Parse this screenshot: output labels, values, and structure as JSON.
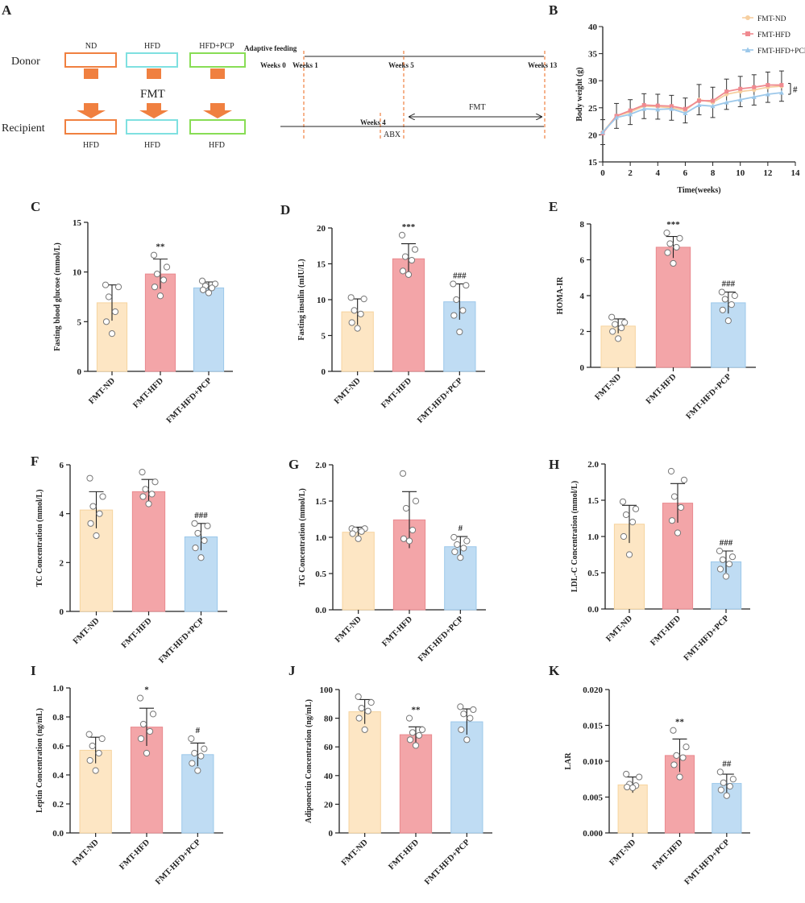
{
  "colors": {
    "nd": "#fde6c4",
    "hfd": "#f3a5a8",
    "pcp": "#bfdcf3",
    "nd_edge": "#f6d49f",
    "hfd_edge": "#e98a8f",
    "pcp_edge": "#9cc8ea",
    "orange": "#f08040",
    "cyan": "#7fe0e0",
    "green": "#88dd55",
    "dash": "#f08040"
  },
  "panels": {
    "A": "A",
    "B": "B",
    "C": "C",
    "D": "D",
    "E": "E",
    "F": "F",
    "G": "G",
    "H": "H",
    "I": "I",
    "J": "J",
    "K": "K"
  },
  "schematic": {
    "donor": "Donor",
    "recipient": "Recipient",
    "fmt": "FMT",
    "top_labels": [
      "ND",
      "HFD",
      "HFD+PCP"
    ],
    "bottom_labels": [
      "HFD",
      "HFD",
      "HFD"
    ],
    "adaptive": "Adaptive feeding",
    "week0": "Weeks 0",
    "week1": "Weeks 1",
    "week5": "Weeks 5",
    "week13": "Weeks 13",
    "week4": "Weeks 4",
    "abx": "ABX",
    "fmt_arrow": "FMT"
  },
  "chart_data": [
    {
      "id": "B",
      "type": "line",
      "xlabel": "Time(weeks)",
      "ylabel": "Body weight (g)",
      "xlim": [
        0,
        14
      ],
      "ylim": [
        15,
        40
      ],
      "xticks": [
        "0",
        "2",
        "4",
        "6",
        "8",
        "10",
        "12",
        "14"
      ],
      "yticks": [
        "15",
        "20",
        "25",
        "30",
        "35",
        "40"
      ],
      "x": [
        0,
        1,
        2,
        3,
        4,
        5,
        6,
        7,
        8,
        9,
        10,
        11,
        12,
        13
      ],
      "series": [
        {
          "name": "FMT-ND",
          "values": [
            20.5,
            23.5,
            24.2,
            25.3,
            25.2,
            25.0,
            24.5,
            26.5,
            26.0,
            27.5,
            28.0,
            28.3,
            28.8,
            29.0
          ]
        },
        {
          "name": "FMT-HFD",
          "values": [
            20.3,
            23.5,
            24.5,
            25.5,
            25.4,
            25.3,
            24.8,
            26.3,
            26.3,
            28.0,
            28.5,
            28.8,
            29.2,
            29.2
          ]
        },
        {
          "name": "FMT-HFD+PCP",
          "values": [
            20.5,
            23.2,
            23.8,
            24.8,
            24.7,
            24.8,
            24.0,
            25.5,
            25.3,
            26.0,
            26.5,
            27.0,
            27.5,
            27.8
          ]
        }
      ],
      "legend_position": "top-right",
      "annotation": "#"
    },
    {
      "id": "C",
      "type": "bar",
      "ylabel": "Fasting blood glucose (mmol/L)",
      "ylim": [
        0,
        15
      ],
      "yticks": [
        "0",
        "5",
        "10",
        "15"
      ],
      "categories": [
        "FMT-ND",
        "FMT-HFD",
        "FMT-HFD+PCP"
      ],
      "values": [
        6.9,
        9.8,
        8.4
      ],
      "errors": [
        1.8,
        1.5,
        0.6
      ],
      "points": [
        [
          8.7,
          8.5,
          7.5,
          6.0,
          5.0,
          3.8
        ],
        [
          11.7,
          10.5,
          9.8,
          9.2,
          8.5,
          7.6
        ],
        [
          9.1,
          8.8,
          8.6,
          8.4,
          8.2,
          7.9
        ]
      ],
      "sig": [
        "",
        "**",
        ""
      ]
    },
    {
      "id": "D",
      "type": "bar",
      "ylabel": "Fasting insulin (mIU/L)",
      "ylim": [
        0,
        20
      ],
      "yticks": [
        "0",
        "5",
        "10",
        "15",
        "20"
      ],
      "categories": [
        "FMT-ND",
        "FMT-HFD",
        "FMT-HFD+PCP"
      ],
      "values": [
        8.3,
        15.7,
        9.7
      ],
      "errors": [
        1.8,
        2.1,
        2.5
      ],
      "points": [
        [
          10.3,
          10.1,
          8.5,
          8.0,
          6.8,
          6.0
        ],
        [
          19.0,
          17.0,
          16.0,
          15.5,
          14.0,
          13.5
        ],
        [
          12.2,
          12.0,
          10.0,
          8.5,
          7.8,
          5.5
        ]
      ],
      "sig": [
        "",
        "***",
        "###"
      ]
    },
    {
      "id": "E",
      "type": "bar",
      "ylabel": "HOMA-IR",
      "ylim": [
        0,
        8
      ],
      "yticks": [
        "0",
        "2",
        "4",
        "6",
        "8"
      ],
      "categories": [
        "FMT-ND",
        "FMT-HFD",
        "FMT-HFD+PCP"
      ],
      "values": [
        2.3,
        6.7,
        3.6
      ],
      "errors": [
        0.4,
        0.6,
        0.6
      ],
      "points": [
        [
          2.8,
          2.5,
          2.4,
          2.2,
          2.0,
          1.6
        ],
        [
          7.5,
          7.2,
          6.9,
          6.7,
          6.4,
          5.8
        ],
        [
          4.2,
          4.0,
          3.8,
          3.5,
          3.2,
          2.6
        ]
      ],
      "sig": [
        "",
        "***",
        "###"
      ]
    },
    {
      "id": "F",
      "type": "bar",
      "ylabel": "TC Concentration (mmol/L)",
      "ylim": [
        0,
        6
      ],
      "yticks": [
        "0",
        "2",
        "4",
        "6"
      ],
      "categories": [
        "FMT-ND",
        "FMT-HFD",
        "FMT-HFD+PCP"
      ],
      "values": [
        4.15,
        4.9,
        3.05
      ],
      "errors": [
        0.75,
        0.5,
        0.55
      ],
      "points": [
        [
          5.45,
          4.7,
          4.3,
          4.0,
          3.6,
          3.1
        ],
        [
          5.7,
          5.3,
          5.0,
          4.8,
          4.7,
          4.4
        ],
        [
          3.6,
          3.5,
          3.2,
          2.9,
          2.6,
          2.2
        ]
      ],
      "sig": [
        "",
        "",
        "###"
      ]
    },
    {
      "id": "G",
      "type": "bar",
      "ylabel": "TG Concentration (mmol/L)",
      "ylim": [
        0,
        2.0
      ],
      "yticks": [
        "0.0",
        "0.5",
        "1.0",
        "1.5",
        "2.0"
      ],
      "categories": [
        "FMT-ND",
        "FMT-HFD",
        "FMT-HFD+PCP"
      ],
      "values": [
        1.07,
        1.24,
        0.87
      ],
      "errors": [
        0.07,
        0.39,
        0.14
      ],
      "points": [
        [
          1.12,
          1.12,
          1.1,
          1.08,
          1.05,
          0.98
        ],
        [
          1.88,
          1.5,
          1.4,
          1.1,
          0.98,
          0.95
        ],
        [
          1.0,
          0.95,
          0.9,
          0.85,
          0.8,
          0.72
        ]
      ],
      "sig": [
        "",
        "",
        "#"
      ]
    },
    {
      "id": "H",
      "type": "bar",
      "ylabel": "LDL-C Concentration (mmol/L)",
      "ylim": [
        0,
        2.0
      ],
      "yticks": [
        "0.0",
        "0.5",
        "1.0",
        "1.5",
        "2.0"
      ],
      "categories": [
        "FMT-ND",
        "FMT-HFD",
        "FMT-HFD+PCP"
      ],
      "values": [
        1.17,
        1.46,
        0.65
      ],
      "errors": [
        0.26,
        0.27,
        0.15
      ],
      "points": [
        [
          1.48,
          1.38,
          1.3,
          1.2,
          1.0,
          0.75
        ],
        [
          1.9,
          1.78,
          1.55,
          1.4,
          1.22,
          1.05
        ],
        [
          0.8,
          0.72,
          0.68,
          0.62,
          0.55,
          0.45
        ]
      ],
      "sig": [
        "",
        "",
        "###"
      ]
    },
    {
      "id": "I",
      "type": "bar",
      "ylabel": "Leptin Concentration (ng/mL)",
      "ylim": [
        0,
        1.0
      ],
      "yticks": [
        "0.0",
        "0.2",
        "0.4",
        "0.6",
        "0.8",
        "1.0"
      ],
      "categories": [
        "FMT-ND",
        "FMT-HFD",
        "FMT-HFD+PCP"
      ],
      "values": [
        0.57,
        0.73,
        0.54
      ],
      "errors": [
        0.09,
        0.13,
        0.08
      ],
      "points": [
        [
          0.68,
          0.65,
          0.6,
          0.55,
          0.5,
          0.43
        ],
        [
          0.93,
          0.82,
          0.75,
          0.7,
          0.65,
          0.55
        ],
        [
          0.65,
          0.58,
          0.55,
          0.53,
          0.48,
          0.43
        ]
      ],
      "sig": [
        "",
        "*",
        "#"
      ]
    },
    {
      "id": "J",
      "type": "bar",
      "ylabel": "Adiponectin Concentration (ng/mL)",
      "ylim": [
        0,
        100
      ],
      "yticks": [
        "0",
        "20",
        "40",
        "60",
        "80",
        "100"
      ],
      "categories": [
        "FMT-ND",
        "FMT-HFD",
        "FMT-HFD+PCP"
      ],
      "values": [
        84.5,
        68.5,
        77.5
      ],
      "errors": [
        8.5,
        5.5,
        9
      ],
      "points": [
        [
          95,
          91,
          87,
          85,
          80,
          72
        ],
        [
          80,
          72,
          70,
          68,
          65,
          61
        ],
        [
          88,
          86,
          83,
          80,
          72,
          65
        ]
      ],
      "sig": [
        "",
        "**",
        ""
      ]
    },
    {
      "id": "K",
      "type": "bar",
      "ylabel": "LAR",
      "ylim": [
        0,
        0.02
      ],
      "yticks": [
        "0.000",
        "0.005",
        "0.010",
        "0.015",
        "0.020"
      ],
      "categories": [
        "FMT-ND",
        "FMT-HFD",
        "FMT-HFD+PCP"
      ],
      "values": [
        0.0067,
        0.0108,
        0.0069
      ],
      "errors": [
        0.0011,
        0.0023,
        0.0013
      ],
      "points": [
        [
          0.0082,
          0.0078,
          0.0068,
          0.0066,
          0.0064,
          0.0063
        ],
        [
          0.0143,
          0.012,
          0.0108,
          0.0105,
          0.0095,
          0.0078
        ],
        [
          0.0085,
          0.0075,
          0.007,
          0.0065,
          0.006,
          0.0052
        ]
      ],
      "sig": [
        "",
        "**",
        "##"
      ]
    }
  ]
}
